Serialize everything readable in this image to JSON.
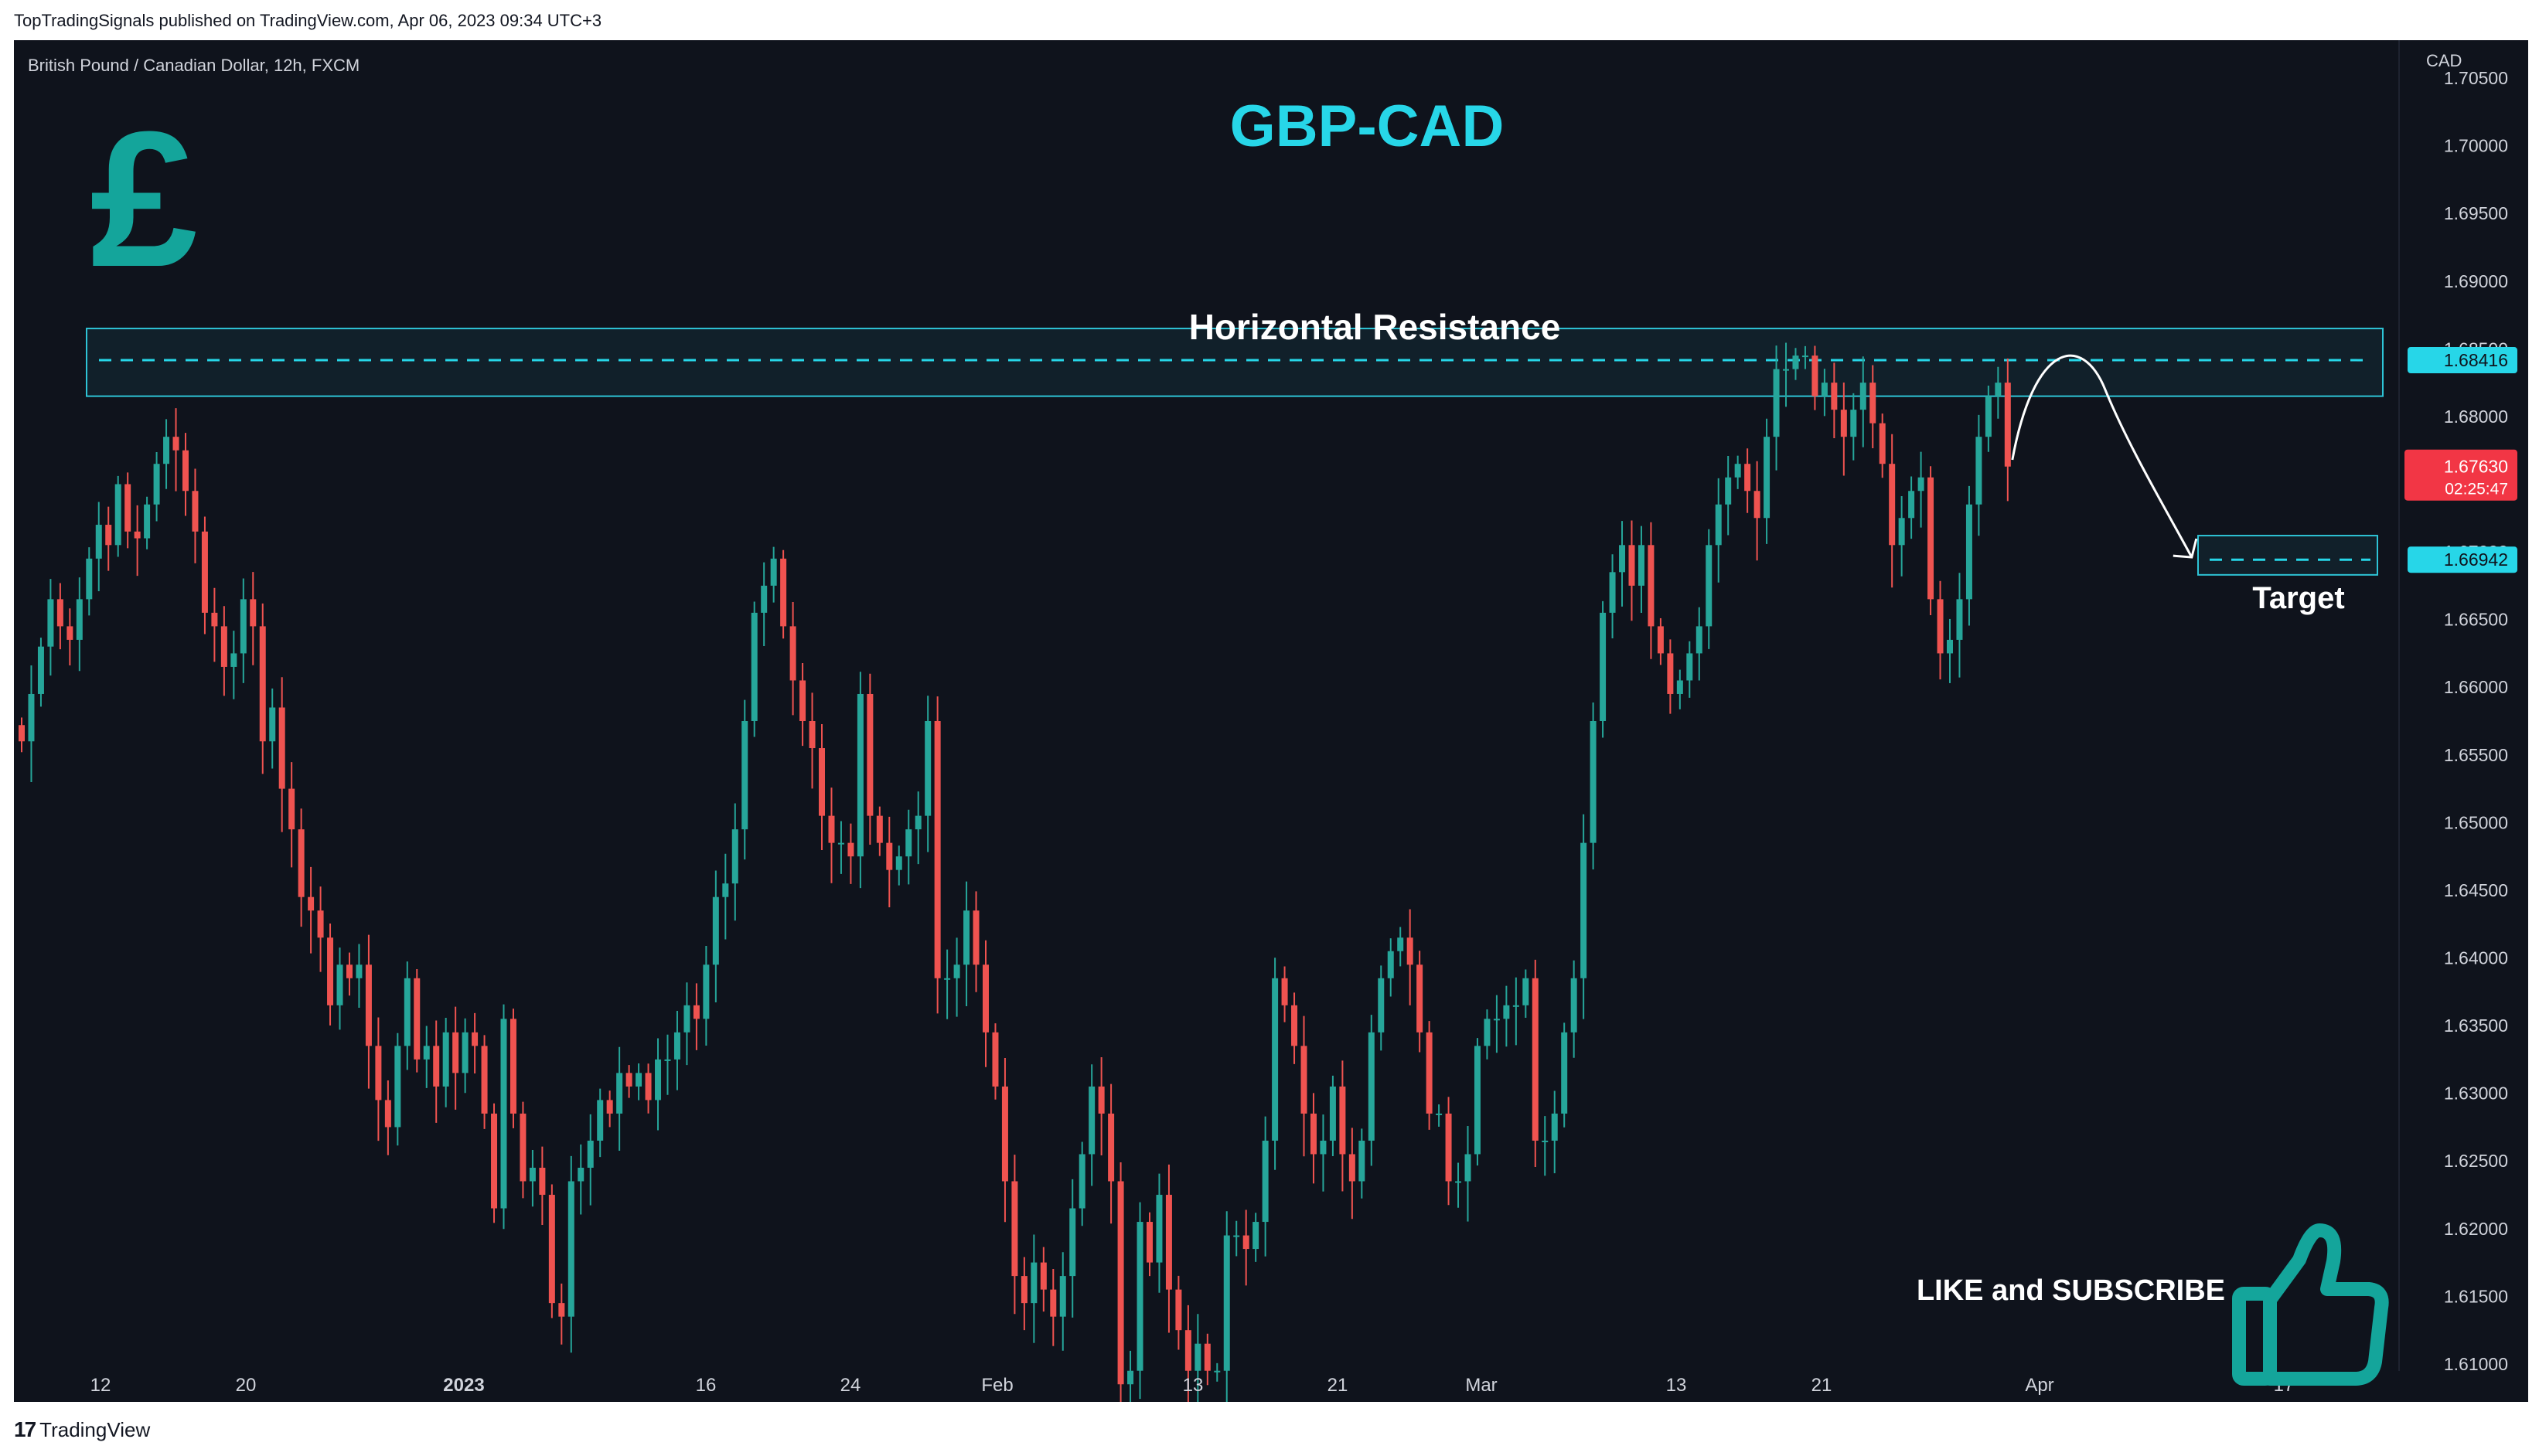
{
  "publication": "TopTradingSignals published on TradingView.com, Apr 06, 2023 09:34 UTC+3",
  "symbol_line": "British Pound / Canadian Dollar, 12h, FXCM",
  "footer_brand": "TradingView",
  "icons": {
    "pound": "pound-sign-icon",
    "thumb": "thumbs-up-icon",
    "footer": "tradingview-logo-icon"
  },
  "colors": {
    "background": "#0f131c",
    "up": "#26a69a",
    "down": "#ef5350",
    "accent": "#27d6e8",
    "zone_border": "#2ec4d6",
    "text": "#d1d4dc",
    "current_price": "#f23645"
  },
  "annotations": {
    "title": "GBP-CAD",
    "resistance": "Horizontal Resistance",
    "target": "Target",
    "cta": "LIKE and SUBSCRIBE"
  },
  "chart_data": {
    "type": "candlestick",
    "currency_label": "CAD",
    "y_ticks": [
      "1.70500",
      "1.70000",
      "1.69500",
      "1.69000",
      "1.68500",
      "1.68000",
      "1.67500",
      "1.67000",
      "1.66500",
      "1.66000",
      "1.65500",
      "1.65000",
      "1.64500",
      "1.64000",
      "1.63500",
      "1.63000",
      "1.62500",
      "1.62000",
      "1.61500",
      "1.61000"
    ],
    "y_tick_values": [
      1.705,
      1.7,
      1.695,
      1.69,
      1.685,
      1.68,
      1.675,
      1.67,
      1.665,
      1.66,
      1.655,
      1.65,
      1.645,
      1.64,
      1.635,
      1.63,
      1.625,
      1.62,
      1.615,
      1.61
    ],
    "ylim": [
      1.6072,
      1.7078
    ],
    "x_labels": [
      "12",
      "20",
      "2023",
      "16",
      "24",
      "Feb",
      "13",
      "21",
      "Mar",
      "13",
      "21",
      "Apr",
      "17"
    ],
    "x_label_bold": "2023",
    "resistance_zone": {
      "low": 1.6815,
      "high": 1.6865,
      "level": 1.68416
    },
    "target_zone": {
      "low": 1.6683,
      "high": 1.6712,
      "level": 1.66942
    },
    "price_labels": [
      {
        "value": 1.68416,
        "text": "1.68416",
        "style": "line"
      },
      {
        "value": 1.6763,
        "text": "1.67630",
        "countdown": "02:25:47",
        "style": "current"
      },
      {
        "value": 1.66942,
        "text": "1.66942",
        "style": "line"
      }
    ],
    "closes": [
      1.656,
      1.6595,
      1.663,
      1.6665,
      1.6645,
      1.6635,
      1.6665,
      1.6695,
      1.672,
      1.6705,
      1.675,
      1.6715,
      1.671,
      1.6735,
      1.6765,
      1.6785,
      1.6775,
      1.6745,
      1.6715,
      1.6655,
      1.6645,
      1.6615,
      1.6625,
      1.6665,
      1.6645,
      1.656,
      1.6585,
      1.6525,
      1.6495,
      1.6445,
      1.6435,
      1.6415,
      1.6365,
      1.6395,
      1.6385,
      1.6395,
      1.6335,
      1.6295,
      1.6275,
      1.6335,
      1.6385,
      1.6325,
      1.6335,
      1.6305,
      1.6345,
      1.6315,
      1.6345,
      1.6335,
      1.6285,
      1.6215,
      1.6355,
      1.6285,
      1.6235,
      1.6245,
      1.6225,
      1.6145,
      1.6135,
      1.6235,
      1.6245,
      1.6265,
      1.6295,
      1.6285,
      1.6315,
      1.6305,
      1.6315,
      1.6295,
      1.6325,
      1.6325,
      1.6345,
      1.6365,
      1.6355,
      1.6395,
      1.6445,
      1.6455,
      1.6495,
      1.6575,
      1.6655,
      1.6675,
      1.6695,
      1.6645,
      1.6605,
      1.6575,
      1.6555,
      1.6505,
      1.6485,
      1.6485,
      1.6475,
      1.6595,
      1.6505,
      1.6485,
      1.6465,
      1.6475,
      1.6495,
      1.6505,
      1.6575,
      1.6385,
      1.6385,
      1.6395,
      1.6435,
      1.6395,
      1.6345,
      1.6305,
      1.6235,
      1.6165,
      1.6145,
      1.6175,
      1.6155,
      1.6135,
      1.6165,
      1.6215,
      1.6255,
      1.6305,
      1.6285,
      1.6235,
      1.6085,
      1.6095,
      1.6205,
      1.6175,
      1.6225,
      1.6155,
      1.6125,
      1.6095,
      1.6115,
      1.6095,
      1.6095,
      1.6195,
      1.6195,
      1.6185,
      1.6205,
      1.6265,
      1.6385,
      1.6365,
      1.6335,
      1.6285,
      1.6255,
      1.6265,
      1.6305,
      1.6255,
      1.6235,
      1.6265,
      1.6345,
      1.6385,
      1.6405,
      1.6415,
      1.6395,
      1.6345,
      1.6285,
      1.6285,
      1.6235,
      1.6235,
      1.6255,
      1.6335,
      1.6355,
      1.6355,
      1.6365,
      1.6365,
      1.6385,
      1.6265,
      1.6265,
      1.6285,
      1.6345,
      1.6385,
      1.6485,
      1.6575,
      1.6655,
      1.6685,
      1.6705,
      1.6675,
      1.6705,
      1.6645,
      1.6625,
      1.6595,
      1.6605,
      1.6625,
      1.6645,
      1.6705,
      1.6735,
      1.6755,
      1.6765,
      1.6745,
      1.6725,
      1.6785,
      1.6835,
      1.6835,
      1.6845,
      1.6845,
      1.6815,
      1.6825,
      1.6805,
      1.6785,
      1.6805,
      1.6825,
      1.6795,
      1.6765,
      1.6705,
      1.6725,
      1.6745,
      1.6755,
      1.6665,
      1.6625,
      1.6635,
      1.6665,
      1.6735,
      1.6785,
      1.6815,
      1.6825,
      1.6763
    ]
  }
}
